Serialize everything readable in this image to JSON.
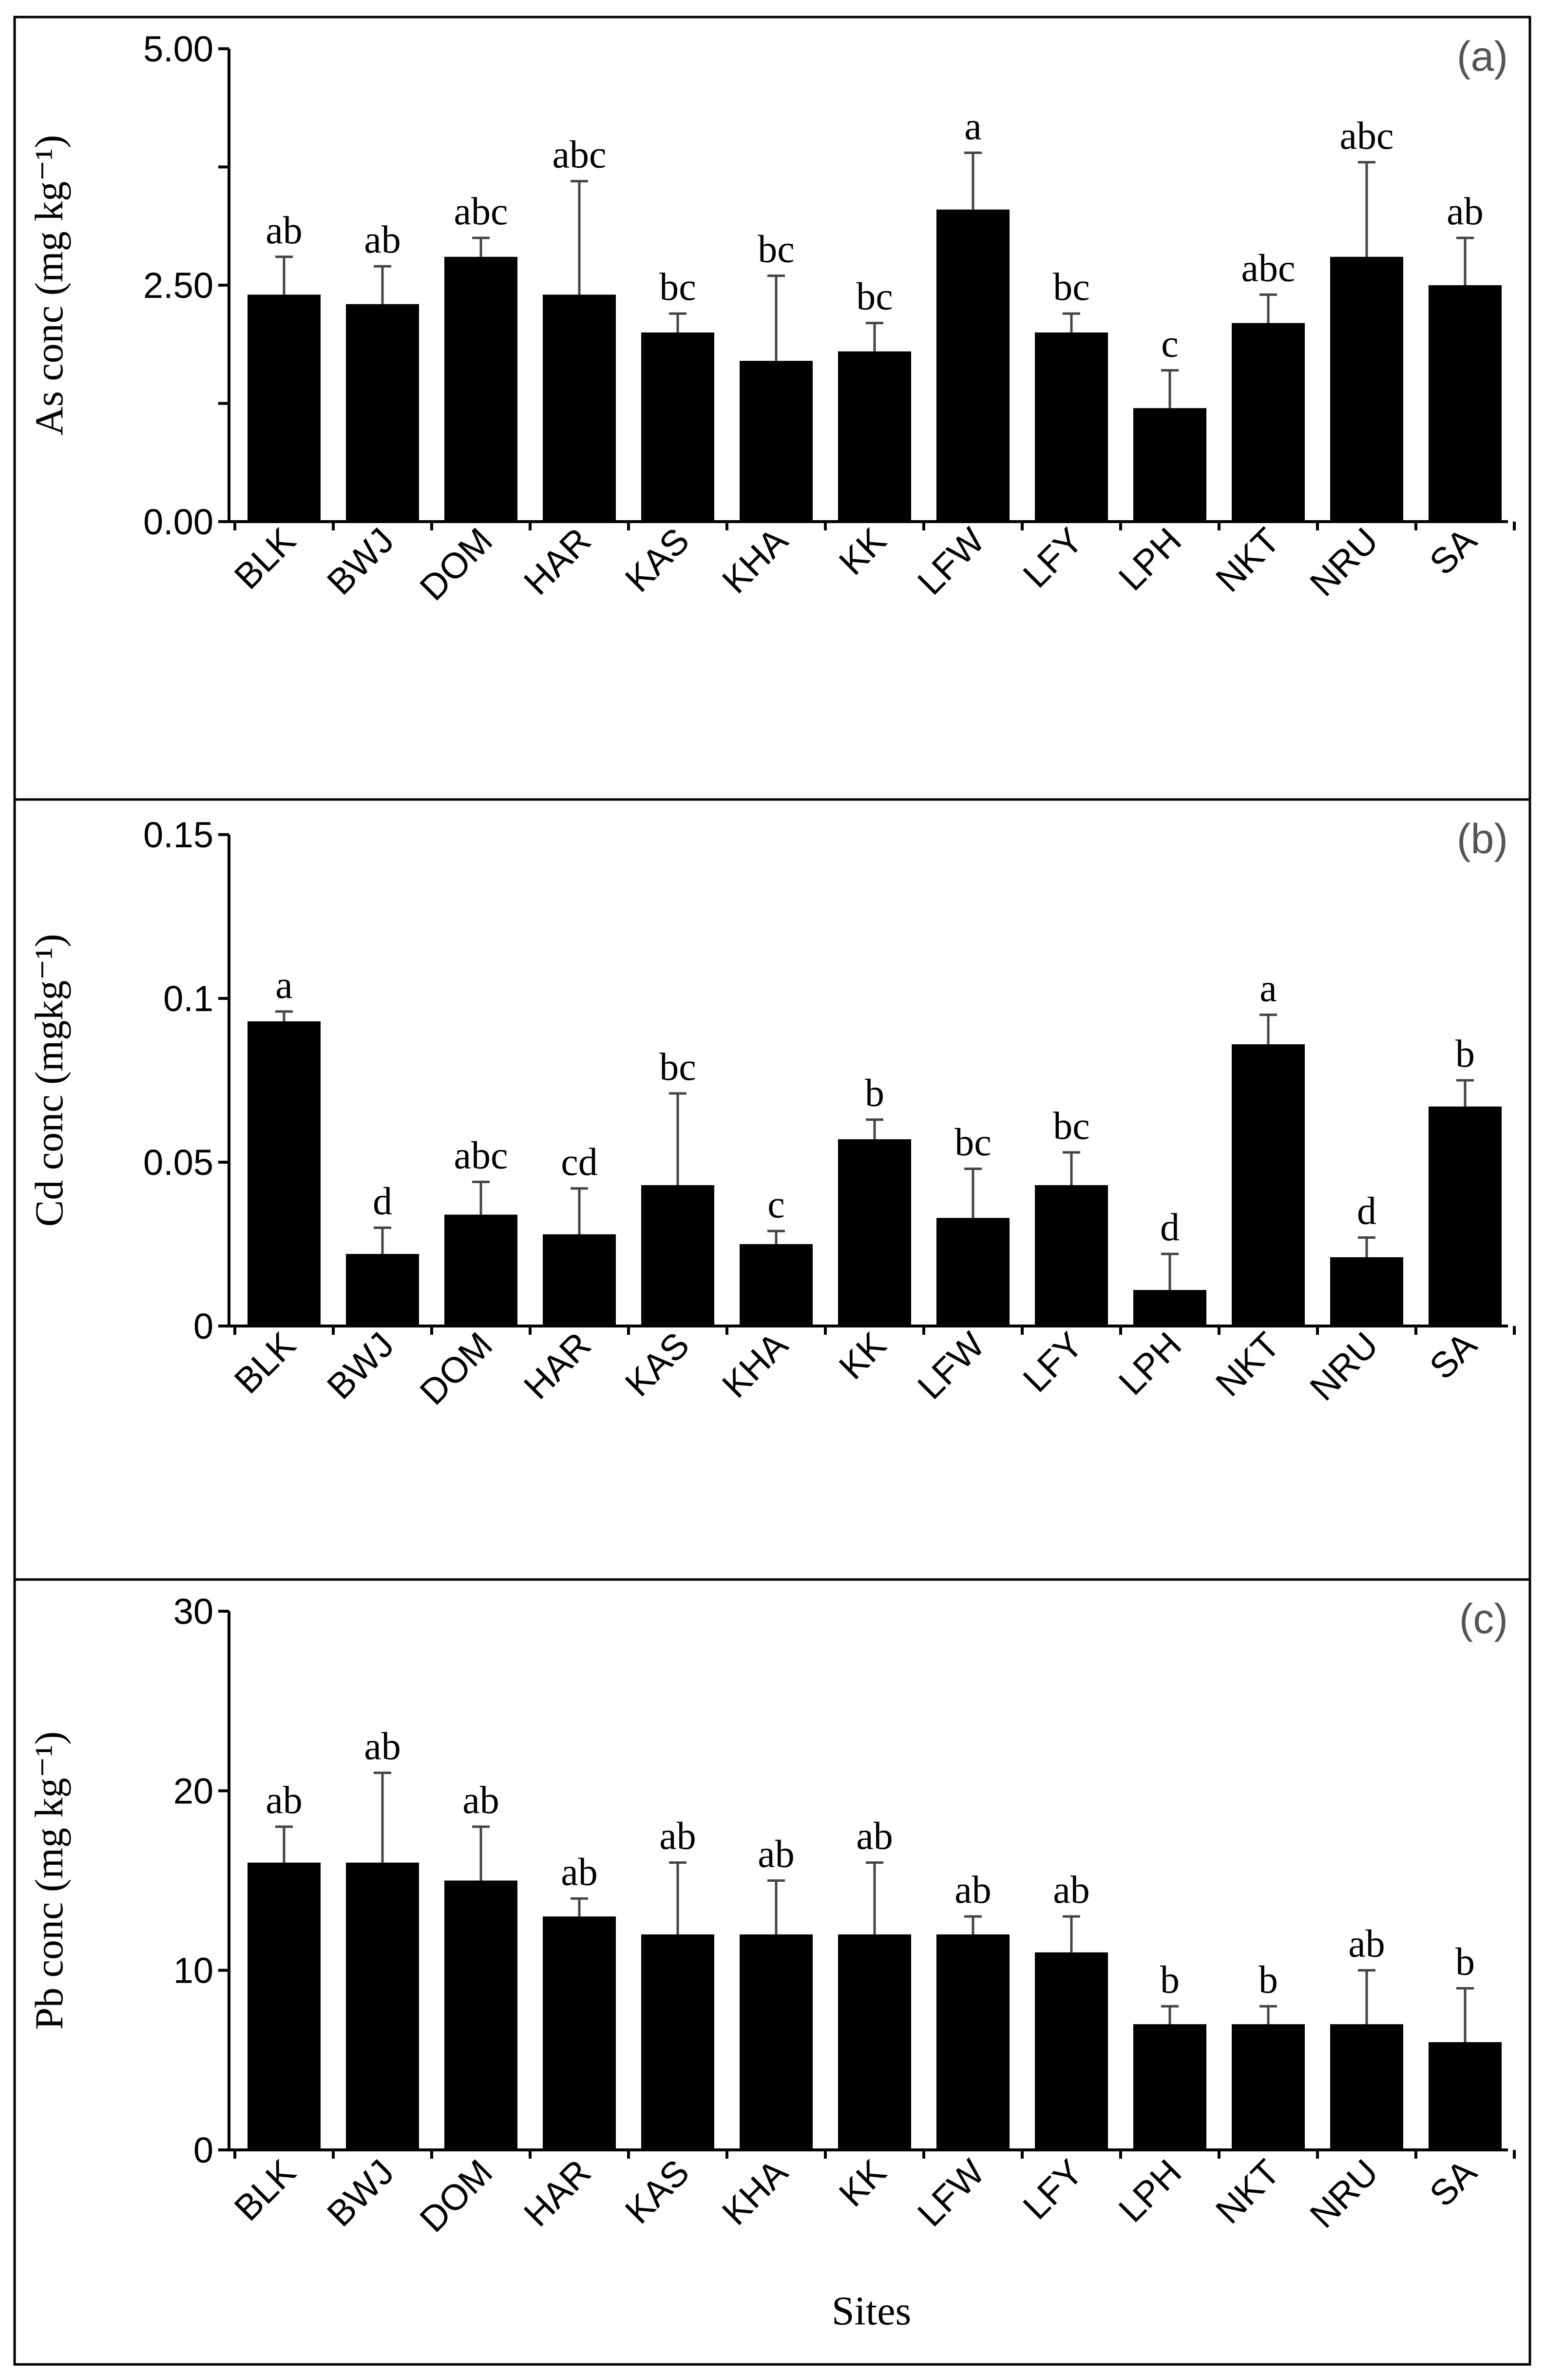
{
  "chart_data": [
    {
      "type": "bar",
      "panel_label": "(a)",
      "ylabel": "As conc (mg kg⁻¹)",
      "xlabel": "",
      "categories": [
        "BLK",
        "BWJ",
        "DOM",
        "HAR",
        "KAS",
        "KHA",
        "KK",
        "LFW",
        "LFY",
        "LPH",
        "NKT",
        "NRU",
        "SA"
      ],
      "values": [
        2.4,
        2.3,
        2.8,
        2.4,
        2.0,
        1.7,
        1.8,
        3.3,
        2.0,
        1.2,
        2.1,
        2.8,
        2.5
      ],
      "errors": [
        0.4,
        0.4,
        0.2,
        1.2,
        0.2,
        0.9,
        0.3,
        0.6,
        0.2,
        0.4,
        0.3,
        1.0,
        0.5
      ],
      "letters": [
        "ab",
        "ab",
        "abc",
        "abc",
        "bc",
        "bc",
        "bc",
        "a",
        "bc",
        "c",
        "abc",
        "abc",
        "ab"
      ],
      "ylim": [
        0,
        5
      ],
      "yticks": [
        0,
        2.5,
        5
      ],
      "ytick_labels": [
        "0.00",
        "2.50",
        "5.00"
      ],
      "ytick_minor": [
        1.25,
        3.75
      ]
    },
    {
      "type": "bar",
      "panel_label": "(b)",
      "ylabel": "Cd conc (mgkg⁻¹)",
      "xlabel": "",
      "categories": [
        "BLK",
        "BWJ",
        "DOM",
        "HAR",
        "KAS",
        "KHA",
        "KK",
        "LFW",
        "LFY",
        "LPH",
        "NKT",
        "NRU",
        "SA"
      ],
      "values": [
        0.093,
        0.022,
        0.034,
        0.028,
        0.043,
        0.025,
        0.057,
        0.033,
        0.043,
        0.011,
        0.086,
        0.021,
        0.067
      ],
      "errors": [
        0.003,
        0.008,
        0.01,
        0.014,
        0.028,
        0.004,
        0.006,
        0.015,
        0.01,
        0.011,
        0.009,
        0.006,
        0.008
      ],
      "letters": [
        "a",
        "d",
        "abc",
        "cd",
        "bc",
        "c",
        "b",
        "bc",
        "bc",
        "d",
        "a",
        "d",
        "b"
      ],
      "ylim": [
        0,
        0.15
      ],
      "yticks": [
        0,
        0.05,
        0.1,
        0.15
      ],
      "ytick_labels": [
        "0",
        "0.05",
        "0.1",
        "0.15"
      ],
      "ytick_minor": []
    },
    {
      "type": "bar",
      "panel_label": "(c)",
      "ylabel": "Pb conc (mg kg⁻¹)",
      "xlabel": "Sites",
      "categories": [
        "BLK",
        "BWJ",
        "DOM",
        "HAR",
        "KAS",
        "KHA",
        "KK",
        "LFW",
        "LFY",
        "LPH",
        "NKT",
        "NRU",
        "SA"
      ],
      "values": [
        16,
        16,
        15,
        13,
        12,
        12,
        12,
        12,
        11,
        7,
        7,
        7,
        6
      ],
      "errors": [
        2,
        5,
        3,
        1,
        4,
        3,
        4,
        1,
        2,
        1,
        1,
        3,
        3
      ],
      "letters": [
        "ab",
        "ab",
        "ab",
        "ab",
        "ab",
        "ab",
        "ab",
        "ab",
        "ab",
        "b",
        "b",
        "ab",
        "b"
      ],
      "ylim": [
        0,
        30
      ],
      "yticks": [
        0,
        10,
        20,
        30
      ],
      "ytick_labels": [
        "0",
        "10",
        "20",
        "30"
      ],
      "ytick_minor": []
    }
  ]
}
